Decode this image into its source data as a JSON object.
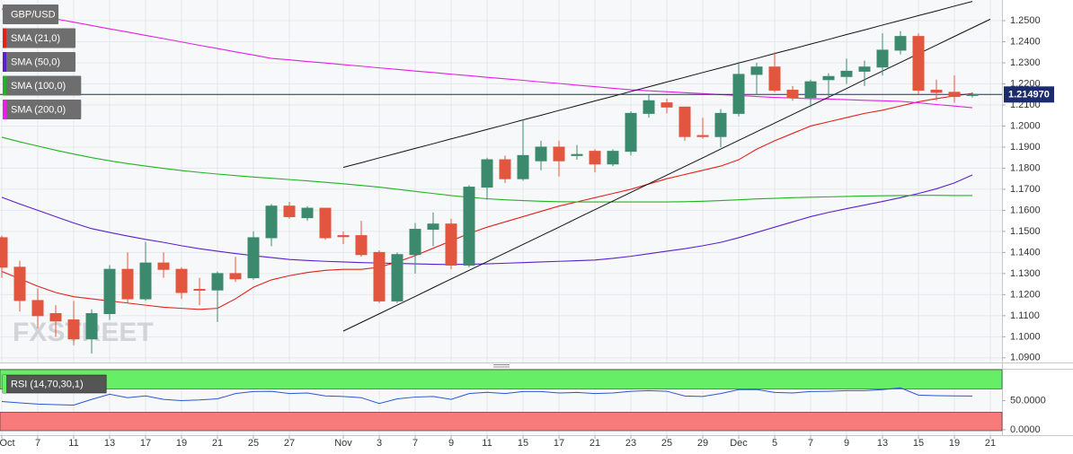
{
  "chart_data": [
    {
      "type": "candlestick",
      "title": "GBP/USD",
      "categories": [
        "Oct",
        null,
        "7",
        null,
        "11",
        null,
        "13",
        null,
        "17",
        null,
        "19",
        null,
        "21",
        null,
        "25",
        null,
        "27",
        null,
        null,
        "Nov",
        null,
        "3",
        null,
        "7",
        null,
        "9",
        null,
        "11",
        null,
        "15",
        null,
        "17",
        null,
        "21",
        null,
        "23",
        null,
        "25",
        null,
        "29",
        null,
        "Dec",
        null,
        "5",
        null,
        "7",
        null,
        "9",
        null,
        "13",
        null,
        "15",
        null,
        "19",
        null,
        "21"
      ],
      "open": [
        1.147,
        1.133,
        1.1172,
        1.111,
        1.108,
        1.099,
        1.111,
        1.132,
        1.118,
        1.135,
        1.132,
        1.1225,
        1.1222,
        1.13,
        1.128,
        1.147,
        1.162,
        1.1565,
        1.161,
        1.148,
        1.148,
        1.14,
        1.117,
        1.139,
        1.151,
        1.1535,
        1.134,
        1.171,
        1.184,
        1.175,
        1.1835,
        1.19,
        1.186,
        1.188,
        1.182,
        1.188,
        1.206,
        1.211,
        1.209,
        1.1955,
        1.195,
        1.206,
        1.2245,
        1.228,
        1.217,
        1.2135,
        1.222,
        1.2235,
        1.226,
        1.228,
        1.236,
        1.2425,
        1.217,
        1.216,
        1.2145,
        null
      ],
      "high": [
        1.148,
        1.136,
        1.123,
        1.115,
        1.117,
        1.113,
        1.134,
        1.14,
        1.145,
        1.14,
        1.133,
        1.128,
        1.131,
        1.138,
        1.15,
        1.163,
        1.164,
        1.162,
        1.161,
        1.15,
        1.155,
        1.141,
        1.14,
        1.154,
        1.159,
        1.156,
        1.172,
        1.185,
        1.186,
        1.203,
        1.193,
        1.193,
        1.191,
        1.189,
        1.189,
        1.207,
        1.215,
        1.213,
        1.209,
        1.204,
        1.208,
        1.2305,
        1.23,
        1.235,
        1.219,
        1.222,
        1.225,
        1.232,
        1.231,
        1.244,
        1.245,
        1.244,
        1.222,
        1.224,
        1.216,
        null
      ],
      "low": [
        1.128,
        1.112,
        1.104,
        1.1,
        1.096,
        1.092,
        1.108,
        1.116,
        1.117,
        1.128,
        1.118,
        1.115,
        1.107,
        1.126,
        1.127,
        1.143,
        1.156,
        1.155,
        1.146,
        1.144,
        1.138,
        1.116,
        1.116,
        1.13,
        1.143,
        1.132,
        1.133,
        1.165,
        1.173,
        1.174,
        1.179,
        1.176,
        1.184,
        1.178,
        1.181,
        1.186,
        1.204,
        1.206,
        1.193,
        1.194,
        1.19,
        1.2045,
        1.215,
        1.216,
        1.212,
        1.209,
        1.213,
        1.22,
        1.219,
        1.224,
        1.234,
        1.215,
        1.212,
        1.211,
        1.2135,
        null
      ],
      "close": [
        1.133,
        1.1172,
        1.11,
        1.1075,
        1.099,
        1.111,
        1.132,
        1.118,
        1.135,
        1.132,
        1.121,
        1.1222,
        1.13,
        1.1275,
        1.147,
        1.162,
        1.157,
        1.161,
        1.147,
        1.1475,
        1.139,
        1.117,
        1.139,
        1.151,
        1.1535,
        1.134,
        1.171,
        1.184,
        1.175,
        1.186,
        1.19,
        1.1835,
        1.1865,
        1.182,
        1.188,
        1.206,
        1.212,
        1.209,
        1.195,
        1.195,
        1.206,
        1.2245,
        1.228,
        1.217,
        1.2135,
        1.221,
        1.2235,
        1.226,
        1.228,
        1.236,
        1.2425,
        1.217,
        1.216,
        1.214,
        1.215,
        null
      ],
      "up_color": "#3b8a6d",
      "down_color": "#e2553f",
      "series": [
        {
          "name": "SMA (21,0)",
          "color": "#e3211c",
          "values": [
            1.131,
            1.1275,
            1.124,
            1.121,
            1.119,
            1.118,
            1.117,
            1.116,
            1.115,
            1.114,
            1.1135,
            1.113,
            1.1135,
            1.118,
            1.1235,
            1.127,
            1.129,
            1.1305,
            1.1315,
            1.132,
            1.132,
            1.133,
            1.1355,
            1.1385,
            1.142,
            1.1455,
            1.149,
            1.152,
            1.1545,
            1.157,
            1.1595,
            1.162,
            1.164,
            1.166,
            1.168,
            1.17,
            1.1725,
            1.175,
            1.177,
            1.179,
            1.181,
            1.184,
            1.189,
            1.193,
            1.1965,
            1.2,
            1.202,
            1.204,
            1.206,
            1.2075,
            1.2095,
            1.2115,
            1.213,
            1.2143,
            1.2155,
            null
          ]
        },
        {
          "name": "SMA (50,0)",
          "color": "#5a1fd1",
          "values": [
            1.1662,
            1.163,
            1.16,
            1.157,
            1.154,
            1.1513,
            1.1495,
            1.1478,
            1.1462,
            1.1448,
            1.1432,
            1.1418,
            1.1406,
            1.1395,
            1.1385,
            1.1376,
            1.1367,
            1.1362,
            1.1358,
            1.1355,
            1.1352,
            1.135,
            1.1348,
            1.1346,
            1.1344,
            1.1343,
            1.1344,
            1.1346,
            1.1349,
            1.1352,
            1.1355,
            1.1358,
            1.1361,
            1.1364,
            1.1372,
            1.1382,
            1.1394,
            1.1406,
            1.1418,
            1.1432,
            1.1448,
            1.147,
            1.1495,
            1.152,
            1.1545,
            1.157,
            1.159,
            1.1608,
            1.1625,
            1.1642,
            1.166,
            1.168,
            1.1702,
            1.173,
            1.1768,
            null
          ]
        },
        {
          "name": "SMA (100,0)",
          "color": "#22b322",
          "values": [
            1.1947,
            1.1925,
            1.1905,
            1.1885,
            1.1867,
            1.185,
            1.1835,
            1.1822,
            1.181,
            1.1799,
            1.1789,
            1.178,
            1.1772,
            1.1765,
            1.1758,
            1.1752,
            1.1746,
            1.174,
            1.1733,
            1.1726,
            1.1718,
            1.171,
            1.17,
            1.169,
            1.168,
            1.167,
            1.1662,
            1.1655,
            1.165,
            1.1646,
            1.1643,
            1.1641,
            1.164,
            1.164,
            1.164,
            1.164,
            1.164,
            1.164,
            1.1641,
            1.1643,
            1.1646,
            1.165,
            1.1654,
            1.1657,
            1.166,
            1.1662,
            1.1664,
            1.1666,
            1.1668,
            1.1669,
            1.167,
            1.1671,
            1.1671,
            1.167,
            1.167,
            null
          ]
        },
        {
          "name": "SMA (200,0)",
          "color": "#e61ee6",
          "values": [
            1.2555,
            1.2539,
            1.2524,
            1.2508,
            1.2493,
            1.2477,
            1.2461,
            1.2446,
            1.243,
            1.2415,
            1.2399,
            1.2383,
            1.2368,
            1.2352,
            1.2337,
            1.2321,
            1.2314,
            1.2306,
            1.2299,
            1.2291,
            1.2284,
            1.2276,
            1.2269,
            1.2261,
            1.2254,
            1.2246,
            1.2239,
            1.2231,
            1.2224,
            1.2217,
            1.2209,
            1.2202,
            1.2194,
            1.2187,
            1.2179,
            1.2172,
            1.2167,
            1.2163,
            1.2158,
            1.2154,
            1.2149,
            1.2145,
            1.214,
            1.2136,
            1.2133,
            1.213,
            1.2128,
            1.2125,
            1.2122,
            1.212,
            1.2117,
            1.211,
            1.2102,
            1.2095,
            1.2087,
            null
          ]
        }
      ],
      "trendlines": [
        {
          "color": "#111111",
          "values": [
            null,
            null,
            null,
            null,
            null,
            null,
            null,
            null,
            null,
            null,
            null,
            null,
            null,
            null,
            null,
            null,
            null,
            null,
            null,
            1.1804,
            1.1826,
            1.1849,
            1.1871,
            1.1894,
            1.1916,
            1.1939,
            1.1961,
            1.1984,
            1.2006,
            1.2029,
            1.2051,
            1.2074,
            1.2096,
            1.2119,
            1.2141,
            1.2164,
            1.2186,
            1.2209,
            1.2231,
            1.2254,
            1.2276,
            1.2299,
            1.2321,
            1.2344,
            1.2366,
            1.2389,
            1.2411,
            1.2434,
            1.2456,
            1.2479,
            1.2501,
            1.2524,
            1.2546,
            1.2569,
            1.2591,
            null
          ]
        },
        {
          "color": "#111111",
          "values": [
            null,
            null,
            null,
            null,
            null,
            null,
            null,
            null,
            null,
            null,
            null,
            null,
            null,
            null,
            null,
            null,
            null,
            null,
            null,
            1.1027,
            1.1068,
            1.1109,
            1.115,
            1.1191,
            1.1233,
            1.1274,
            1.1315,
            1.1356,
            1.1397,
            1.1438,
            1.1479,
            1.152,
            1.1562,
            1.1603,
            1.1644,
            1.1685,
            1.1726,
            1.1767,
            1.1808,
            1.1849,
            1.1891,
            1.1932,
            1.1973,
            1.2014,
            1.2055,
            1.2096,
            1.2137,
            1.2178,
            1.222,
            1.2261,
            1.2302,
            1.2343,
            1.2384,
            1.2425,
            1.2466,
            1.2507
          ]
        }
      ],
      "last_price": {
        "value": 1.21497,
        "label": "1.214970",
        "color": "#1c2b6e"
      },
      "ylim": [
        1.0878,
        1.2598
      ],
      "yticks": [
        {
          "value": 1.09,
          "label": "1.0900"
        },
        {
          "value": 1.1,
          "label": "1.1000"
        },
        {
          "value": 1.11,
          "label": "1.1100"
        },
        {
          "value": 1.12,
          "label": "1.1200"
        },
        {
          "value": 1.13,
          "label": "1.1300"
        },
        {
          "value": 1.14,
          "label": "1.1400"
        },
        {
          "value": 1.15,
          "label": "1.1500"
        },
        {
          "value": 1.16,
          "label": "1.1600"
        },
        {
          "value": 1.17,
          "label": "1.1700"
        },
        {
          "value": 1.18,
          "label": "1.1800"
        },
        {
          "value": 1.19,
          "label": "1.1900"
        },
        {
          "value": 1.2,
          "label": "1.2000"
        },
        {
          "value": 1.21,
          "label": "1.2100"
        },
        {
          "value": 1.22,
          "label": "1.2200"
        },
        {
          "value": 1.23,
          "label": "1.2300"
        },
        {
          "value": 1.24,
          "label": "1.2400"
        },
        {
          "value": 1.25,
          "label": "1.2500"
        }
      ],
      "grid": true,
      "watermark": "FXSTREET"
    },
    {
      "type": "line",
      "title": "RSI (14,70,30,1)",
      "series": [
        {
          "color": "#2a55d6",
          "values": [
            48.4,
            46,
            44,
            43,
            42.2,
            52,
            60.9,
            55,
            58,
            52,
            50,
            51,
            53,
            62,
            65.6,
            66,
            62,
            63,
            58,
            57,
            55,
            45,
            53,
            56,
            57,
            52,
            62,
            64.1,
            62,
            65.6,
            65.6,
            63,
            64,
            62,
            63,
            66,
            67,
            66,
            57.8,
            57,
            62,
            68.8,
            69,
            64,
            63,
            65.6,
            66,
            67,
            67,
            68.8,
            71.9,
            59.4,
            58.5,
            58,
            57.8,
            null
          ]
        }
      ],
      "overbought": 70,
      "oversold": 30,
      "overbought_color": "#66ee66",
      "oversold_color": "#f87a7a",
      "ylim": [
        -9.4,
        103.1
      ],
      "yticks": [
        {
          "value": 50,
          "label": "50.0000"
        },
        {
          "value": 0,
          "label": "0.0000"
        }
      ]
    }
  ]
}
